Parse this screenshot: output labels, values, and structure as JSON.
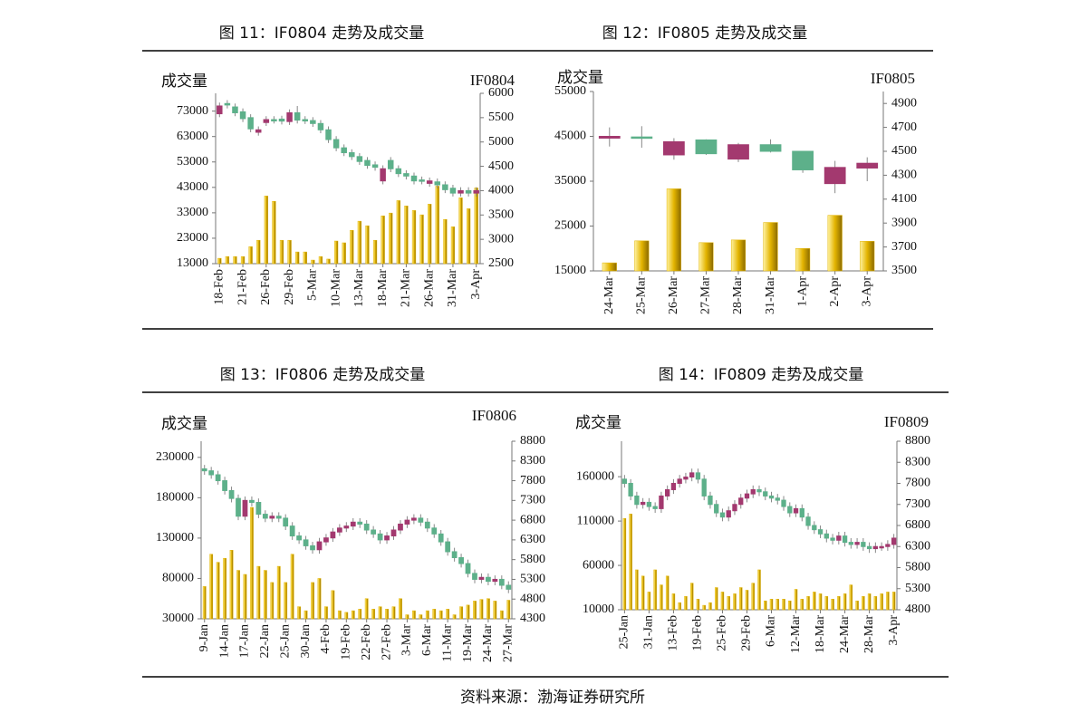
{
  "chart_data": [
    {
      "type": "candlestick",
      "title": "图 11：IF0804 走势及成交量",
      "y_label": "成交量",
      "y2_label": "IF0804",
      "up_color": "#a3396f",
      "down_color": "#5db08a",
      "bar_color": "#e3b400",
      "categories": [
        "18-Feb",
        null,
        null,
        "21-Feb",
        null,
        null,
        "26-Feb",
        null,
        null,
        "29-Feb",
        null,
        null,
        "5-Mar",
        null,
        null,
        "10-Mar",
        null,
        null,
        "13-Mar",
        null,
        null,
        "18-Mar",
        null,
        null,
        "21-Mar",
        null,
        null,
        "26-Mar",
        null,
        null,
        "31-Mar",
        null,
        null,
        "3-Apr"
      ],
      "open": [
        5580,
        5790,
        5720,
        5620,
        5500,
        5200,
        5400,
        5460,
        5470,
        5420,
        5600,
        5460,
        5440,
        5380,
        5250,
        5050,
        4880,
        4780,
        4700,
        4620,
        4530,
        4200,
        4620,
        4450,
        4350,
        4300,
        4220,
        4150,
        4180,
        4120,
        4050,
        3950,
        4000,
        3950
      ],
      "high": [
        5810,
        5860,
        5790,
        5690,
        5570,
        5320,
        5530,
        5530,
        5540,
        5670,
        5740,
        5530,
        5510,
        5450,
        5320,
        5120,
        4950,
        4850,
        4770,
        4690,
        4600,
        4520,
        4690,
        4520,
        4420,
        4370,
        4290,
        4270,
        4250,
        4190,
        4120,
        4070,
        4070,
        4070
      ],
      "low": [
        5510,
        5690,
        5530,
        5410,
        5200,
        5130,
        5330,
        5380,
        5360,
        5350,
        5380,
        5370,
        5310,
        5180,
        4980,
        4810,
        4710,
        4630,
        4530,
        4450,
        4410,
        4130,
        4380,
        4280,
        4230,
        4130,
        4130,
        4080,
        4050,
        3950,
        3880,
        3880,
        3880,
        3880
      ],
      "close": [
        5740,
        5760,
        5600,
        5480,
        5270,
        5250,
        5460,
        5450,
        5430,
        5600,
        5450,
        5440,
        5380,
        5250,
        5050,
        4880,
        4780,
        4700,
        4600,
        4520,
        4480,
        4450,
        4450,
        4350,
        4300,
        4200,
        4200,
        4200,
        4120,
        4020,
        3950,
        4000,
        3950,
        4000
      ],
      "volume": [
        15100,
        15800,
        15800,
        15800,
        19700,
        22200,
        39600,
        37500,
        22200,
        22200,
        17600,
        17600,
        14400,
        15800,
        14800,
        21900,
        21200,
        26100,
        29700,
        27900,
        22200,
        31800,
        32900,
        37800,
        35700,
        33900,
        32200,
        36400,
        43500,
        30400,
        27500,
        38900,
        34600,
        42800
      ],
      "ylim": [
        13000,
        80000
      ],
      "yticks": [
        13000,
        23000,
        33000,
        43000,
        53000,
        63000,
        73000
      ],
      "y2lim": [
        2500,
        6000
      ],
      "y2ticks": [
        2500,
        3000,
        3500,
        4000,
        4500,
        5000,
        5500,
        6000
      ]
    },
    {
      "type": "candlestick",
      "title": "图 12：IF0805 走势及成交量",
      "y_label": "成交量",
      "y2_label": "IF0805",
      "up_color": "#a3396f",
      "down_color": "#5db08a",
      "bar_color": "#e3b400",
      "categories": [
        "24-Mar",
        "25-Mar",
        "26-Mar",
        "27-Mar",
        "28-Mar",
        "31-Mar",
        "1-Apr",
        "2-Apr",
        "3-Apr"
      ],
      "open": [
        4610,
        4620,
        4470,
        4595,
        4435,
        4555,
        4500,
        4230,
        4360
      ],
      "high": [
        4700,
        4710,
        4610,
        4600,
        4570,
        4600,
        4500,
        4420,
        4450
      ],
      "low": [
        4540,
        4530,
        4430,
        4470,
        4410,
        4490,
        4320,
        4150,
        4250
      ],
      "close": [
        4625,
        4615,
        4580,
        4480,
        4555,
        4500,
        4345,
        4365,
        4400
      ],
      "volume": [
        16800,
        21700,
        33300,
        21300,
        21900,
        25800,
        20000,
        27400,
        21600
      ],
      "ylim": [
        15000,
        55000
      ],
      "yticks": [
        15000,
        25000,
        35000,
        45000,
        55000
      ],
      "y2lim": [
        3500,
        5000
      ],
      "y2ticks": [
        3500,
        3700,
        3900,
        4100,
        4300,
        4500,
        4700,
        4900
      ]
    },
    {
      "type": "candlestick",
      "title": "图 13：IF0806 走势及成交量",
      "y_label": "成交量",
      "y2_label": "IF0806",
      "up_color": "#a3396f",
      "down_color": "#5db08a",
      "bar_color": "#e3b400",
      "categories": [
        "9-Jan",
        null,
        null,
        "14-Jan",
        null,
        null,
        "17-Jan",
        null,
        null,
        "22-Jan",
        null,
        null,
        "25-Jan",
        null,
        null,
        "30-Jan",
        null,
        null,
        "4-Feb",
        null,
        null,
        "19-Feb",
        null,
        null,
        "22-Feb",
        null,
        null,
        "27-Feb",
        null,
        null,
        "3-Mar",
        null,
        null,
        "6-Mar",
        null,
        null,
        "11-Mar",
        null,
        null,
        "19-Mar",
        null,
        null,
        "24-Mar",
        null,
        null,
        "27-Mar"
      ],
      "open": [
        8100,
        8050,
        7950,
        7800,
        7550,
        7350,
        6900,
        7300,
        7250,
        6950,
        6850,
        6900,
        6850,
        6650,
        6400,
        6300,
        6150,
        6050,
        6250,
        6350,
        6500,
        6600,
        6650,
        6750,
        6700,
        6550,
        6450,
        6300,
        6400,
        6550,
        6700,
        6800,
        6850,
        6750,
        6600,
        6450,
        6250,
        6000,
        5850,
        5700,
        5450,
        5300,
        5350,
        5250,
        5300,
        5150
      ],
      "high": [
        8200,
        8150,
        8050,
        7900,
        7650,
        7450,
        7400,
        7400,
        7350,
        7050,
        7000,
        7000,
        6950,
        6750,
        6500,
        6400,
        6250,
        6350,
        6450,
        6600,
        6700,
        6750,
        6850,
        6850,
        6800,
        6650,
        6550,
        6500,
        6650,
        6800,
        6900,
        6950,
        6950,
        6850,
        6700,
        6550,
        6350,
        6100,
        5950,
        5800,
        5550,
        5450,
        5450,
        5400,
        5400,
        5250
      ],
      "low": [
        7950,
        7850,
        7700,
        7450,
        7250,
        6800,
        6800,
        7150,
        6850,
        6750,
        6750,
        6750,
        6550,
        6300,
        6200,
        6050,
        5950,
        5950,
        6150,
        6250,
        6400,
        6500,
        6550,
        6600,
        6450,
        6350,
        6200,
        6200,
        6300,
        6450,
        6600,
        6700,
        6650,
        6500,
        6350,
        6150,
        5900,
        5750,
        5600,
        5350,
        5200,
        5200,
        5150,
        5150,
        5050,
        4950
      ],
      "close": [
        8050,
        7950,
        7800,
        7550,
        7350,
        6900,
        7300,
        7250,
        6950,
        6850,
        6900,
        6850,
        6650,
        6400,
        6300,
        6150,
        6050,
        6250,
        6350,
        6500,
        6600,
        6650,
        6750,
        6700,
        6550,
        6450,
        6300,
        6400,
        6550,
        6700,
        6800,
        6850,
        6750,
        6600,
        6450,
        6250,
        6000,
        5850,
        5700,
        5450,
        5300,
        5350,
        5250,
        5300,
        5150,
        5050
      ],
      "volume": [
        70000,
        110000,
        100000,
        105000,
        115000,
        90000,
        85000,
        168000,
        95000,
        90000,
        75000,
        95000,
        75000,
        110000,
        45000,
        40000,
        75000,
        80000,
        45000,
        65000,
        40000,
        38000,
        40000,
        42000,
        55000,
        42000,
        45000,
        42000,
        45000,
        55000,
        35000,
        40000,
        35000,
        40000,
        42000,
        40000,
        42000,
        35000,
        45000,
        47000,
        52000,
        54000,
        55000,
        52000,
        40000,
        53000
      ],
      "ylim": [
        30000,
        250000
      ],
      "yticks": [
        30000,
        80000,
        130000,
        180000,
        230000
      ],
      "y2lim": [
        4300,
        8800
      ],
      "y2ticks": [
        4300,
        4800,
        5300,
        5800,
        6300,
        6800,
        7300,
        7800,
        8300,
        8800
      ]
    },
    {
      "type": "candlestick",
      "title": "图 14：IF0809 走势及成交量",
      "y_label": "成交量",
      "y2_label": "IF0809",
      "up_color": "#a3396f",
      "down_color": "#5db08a",
      "bar_color": "#e3b400",
      "categories": [
        "25-Jan",
        null,
        null,
        null,
        "31-Jan",
        null,
        null,
        null,
        "13-Feb",
        null,
        null,
        null,
        "19-Feb",
        null,
        null,
        null,
        "25-Feb",
        null,
        null,
        null,
        "29-Feb",
        null,
        null,
        null,
        "6-Mar",
        null,
        null,
        null,
        "12-Mar",
        null,
        null,
        null,
        "18-Mar",
        null,
        null,
        null,
        "24-Mar",
        null,
        null,
        null,
        "28-Mar",
        null,
        null,
        null,
        "3-Apr"
      ],
      "open": [
        7900,
        7800,
        7500,
        7300,
        7350,
        7250,
        7200,
        7500,
        7650,
        7800,
        7900,
        7950,
        8050,
        7900,
        7500,
        7300,
        7100,
        7000,
        7150,
        7300,
        7450,
        7550,
        7650,
        7600,
        7500,
        7450,
        7400,
        7250,
        7100,
        7200,
        7000,
        6800,
        6700,
        6600,
        6500,
        6450,
        6550,
        6400,
        6350,
        6400,
        6300,
        6250,
        6300,
        6300,
        6350
      ],
      "high": [
        8000,
        7900,
        7600,
        7450,
        7450,
        7350,
        7600,
        7750,
        7900,
        8000,
        8050,
        8150,
        8150,
        8000,
        7600,
        7400,
        7200,
        7250,
        7400,
        7550,
        7650,
        7750,
        7750,
        7700,
        7600,
        7550,
        7500,
        7350,
        7300,
        7300,
        7100,
        6900,
        6800,
        6700,
        6600,
        6650,
        6650,
        6500,
        6500,
        6500,
        6400,
        6400,
        6400,
        6450,
        6600
      ],
      "low": [
        7700,
        7400,
        7200,
        7200,
        7150,
        7100,
        7100,
        7400,
        7550,
        7700,
        7800,
        7850,
        7800,
        7400,
        7200,
        7000,
        6900,
        6900,
        7050,
        7200,
        7350,
        7450,
        7500,
        7400,
        7350,
        7300,
        7150,
        7000,
        7000,
        6900,
        6700,
        6600,
        6500,
        6400,
        6350,
        6350,
        6300,
        6250,
        6250,
        6200,
        6150,
        6150,
        6200,
        6200,
        6250
      ],
      "close": [
        7800,
        7500,
        7300,
        7350,
        7250,
        7200,
        7500,
        7650,
        7800,
        7900,
        7950,
        8050,
        7900,
        7500,
        7300,
        7100,
        7000,
        7150,
        7300,
        7450,
        7550,
        7650,
        7600,
        7500,
        7450,
        7400,
        7250,
        7100,
        7200,
        7000,
        6800,
        6700,
        6600,
        6500,
        6450,
        6550,
        6400,
        6350,
        6400,
        6300,
        6250,
        6300,
        6300,
        6350,
        6500
      ],
      "volume": [
        113000,
        118000,
        55000,
        48000,
        30000,
        55000,
        38000,
        48000,
        28000,
        18000,
        25000,
        40000,
        22000,
        15000,
        18000,
        35000,
        30000,
        25000,
        28000,
        35000,
        32000,
        40000,
        55000,
        20000,
        22000,
        22000,
        22000,
        20000,
        33000,
        22000,
        25000,
        30000,
        28000,
        25000,
        22000,
        25000,
        28000,
        38000,
        20000,
        25000,
        28000,
        25000,
        28000,
        30000,
        30000
      ],
      "ylim": [
        10000,
        200000
      ],
      "yticks": [
        10000,
        60000,
        110000,
        160000
      ],
      "y2lim": [
        4800,
        8800
      ],
      "y2ticks": [
        4800,
        5300,
        5800,
        6300,
        6800,
        7300,
        7800,
        8300,
        8800
      ]
    }
  ],
  "source": "资料来源：渤海证券研究所"
}
